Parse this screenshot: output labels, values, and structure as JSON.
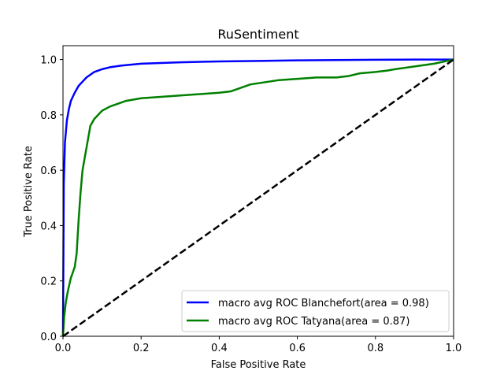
{
  "chart_data": {
    "type": "line",
    "title": "RuSentiment",
    "xlabel": "False Positive Rate",
    "ylabel": "True Positive Rate",
    "xlim": [
      0.0,
      1.0
    ],
    "ylim": [
      0.0,
      1.05
    ],
    "xticks": [
      "0.0",
      "0.2",
      "0.4",
      "0.6",
      "0.8",
      "1.0"
    ],
    "yticks": [
      "0.0",
      "0.2",
      "0.4",
      "0.6",
      "0.8",
      "1.0"
    ],
    "grid": false,
    "legend_position": "lower-right",
    "series": [
      {
        "name": "macro avg ROC Blanchefort(area = 0.98)",
        "color": "#0000ff",
        "style": "solid",
        "x": [
          0,
          0.002,
          0.005,
          0.01,
          0.015,
          0.02,
          0.03,
          0.04,
          0.05,
          0.06,
          0.07,
          0.08,
          0.1,
          0.12,
          0.15,
          0.2,
          0.3,
          0.4,
          0.5,
          0.6,
          0.7,
          0.8,
          0.9,
          1.0
        ],
        "y": [
          0,
          0.55,
          0.7,
          0.78,
          0.82,
          0.85,
          0.88,
          0.905,
          0.92,
          0.935,
          0.945,
          0.955,
          0.965,
          0.972,
          0.978,
          0.985,
          0.99,
          0.993,
          0.995,
          0.997,
          0.998,
          0.999,
          1.0,
          1.0
        ]
      },
      {
        "name": "macro avg ROC Tatyana(area = 0.87)",
        "color": "#008000",
        "style": "solid",
        "x": [
          0,
          0.003,
          0.007,
          0.012,
          0.02,
          0.03,
          0.035,
          0.04,
          0.045,
          0.05,
          0.06,
          0.07,
          0.08,
          0.09,
          0.1,
          0.12,
          0.14,
          0.16,
          0.18,
          0.2,
          0.25,
          0.3,
          0.35,
          0.4,
          0.43,
          0.48,
          0.55,
          0.6,
          0.65,
          0.7,
          0.73,
          0.76,
          0.8,
          0.83,
          0.85,
          0.9,
          0.95,
          1.0
        ],
        "y": [
          0,
          0.07,
          0.12,
          0.16,
          0.21,
          0.25,
          0.3,
          0.42,
          0.52,
          0.6,
          0.68,
          0.76,
          0.785,
          0.8,
          0.815,
          0.83,
          0.84,
          0.85,
          0.855,
          0.86,
          0.865,
          0.87,
          0.875,
          0.88,
          0.885,
          0.91,
          0.925,
          0.93,
          0.935,
          0.935,
          0.94,
          0.95,
          0.955,
          0.96,
          0.965,
          0.975,
          0.985,
          1.0
        ]
      },
      {
        "name": "",
        "color": "#000000",
        "style": "dashed",
        "x": [
          0,
          1
        ],
        "y": [
          0,
          1
        ]
      }
    ]
  }
}
